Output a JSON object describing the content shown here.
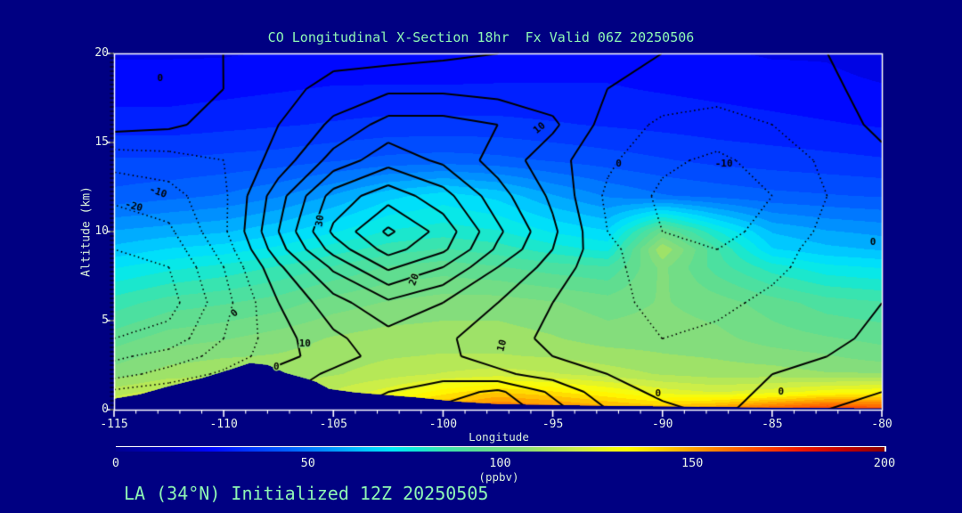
{
  "window": {
    "background": "#000082"
  },
  "title": "CO Longitudinal X-Section 18hr  Fx Valid 06Z 20250506",
  "footer": "LA (34°N) Initialized 12Z 20250505",
  "colors": {
    "background": "#000082",
    "title_text": "#8ef5b4",
    "tick_text": "#e9f4e9",
    "axis_box": "#ffffff",
    "contour_line": "#000000",
    "terrain_fill": "#000082"
  },
  "chart_data": {
    "type": "heatmap",
    "subtype": "filled-contour-cross-section",
    "title": "CO Longitudinal X-Section 18hr  Fx Valid 06Z 20250506",
    "xlabel": "Longitude",
    "ylabel": "Altitude (km)",
    "xlim": [
      -115,
      -80
    ],
    "ylim": [
      0,
      20
    ],
    "x_ticks": [
      -115,
      -110,
      -105,
      -100,
      -95,
      -90,
      -85,
      -80
    ],
    "x_minor_step": 1,
    "y_ticks": [
      0,
      5,
      10,
      15,
      20
    ],
    "y_minor_step": 0.25,
    "grid": "off",
    "colorbar": {
      "label": "(ppbv)",
      "min": 0,
      "max": 200,
      "ticks": [
        0,
        50,
        100,
        150,
        200
      ],
      "stops": [
        [
          0,
          "#000090"
        ],
        [
          15,
          "#0000c8"
        ],
        [
          25,
          "#0008ff"
        ],
        [
          35,
          "#0038ff"
        ],
        [
          45,
          "#0060ff"
        ],
        [
          55,
          "#0090ff"
        ],
        [
          65,
          "#00c8ff"
        ],
        [
          72,
          "#00e8f8"
        ],
        [
          78,
          "#10e8d8"
        ],
        [
          85,
          "#38e4b0"
        ],
        [
          95,
          "#60dd90"
        ],
        [
          105,
          "#84dd7c"
        ],
        [
          112,
          "#a8e460"
        ],
        [
          120,
          "#ccee48"
        ],
        [
          128,
          "#f0f818"
        ],
        [
          133,
          "#ffff00"
        ],
        [
          142,
          "#ffd200"
        ],
        [
          150,
          "#ffa400"
        ],
        [
          158,
          "#ff7800"
        ],
        [
          168,
          "#ff4600"
        ],
        [
          178,
          "#f01800"
        ],
        [
          190,
          "#c00000"
        ],
        [
          200,
          "#8b0000"
        ]
      ],
      "quantize_step": 5
    },
    "fill_field_ppbv": {
      "lons": [
        -115,
        -112.5,
        -110,
        -107.5,
        -105,
        -102.5,
        -100,
        -97.5,
        -95,
        -92.5,
        -90,
        -87.5,
        -85,
        -82.5,
        -80
      ],
      "alts": [
        0,
        1,
        2,
        3,
        4,
        6,
        8,
        9,
        10,
        12,
        14,
        16,
        18,
        20
      ],
      "values": [
        [
          125,
          132,
          128,
          118,
          128,
          142,
          152,
          162,
          158,
          152,
          148,
          155,
          165,
          172,
          168
        ],
        [
          115,
          120,
          118,
          112,
          118,
          125,
          135,
          142,
          138,
          132,
          125,
          122,
          125,
          130,
          132
        ],
        [
          105,
          110,
          112,
          110,
          112,
          115,
          118,
          120,
          118,
          115,
          112,
          110,
          110,
          108,
          108
        ],
        [
          100,
          105,
          107,
          108,
          110,
          112,
          113,
          113,
          112,
          110,
          108,
          107,
          105,
          103,
          100
        ],
        [
          95,
          100,
          102,
          105,
          108,
          110,
          110,
          110,
          108,
          105,
          105,
          104,
          100,
          98,
          96
        ],
        [
          85,
          90,
          92,
          95,
          100,
          103,
          105,
          105,
          103,
          100,
          103,
          100,
          95,
          90,
          88
        ],
        [
          72,
          76,
          79,
          83,
          88,
          93,
          95,
          93,
          90,
          88,
          104,
          90,
          80,
          74,
          72
        ],
        [
          64,
          68,
          70,
          74,
          80,
          85,
          88,
          85,
          80,
          76,
          112,
          88,
          68,
          64,
          62
        ],
        [
          58,
          60,
          62,
          66,
          72,
          78,
          80,
          78,
          72,
          68,
          98,
          78,
          62,
          58,
          56
        ],
        [
          44,
          46,
          48,
          52,
          58,
          66,
          70,
          66,
          58,
          52,
          48,
          46,
          44,
          43,
          42
        ],
        [
          38,
          38,
          39,
          40,
          42,
          44,
          45,
          44,
          42,
          40,
          38,
          36,
          35,
          34,
          33
        ],
        [
          30,
          30,
          31,
          32,
          33,
          34,
          34,
          34,
          33,
          32,
          31,
          30,
          29,
          28,
          27
        ],
        [
          25,
          25,
          26,
          27,
          28,
          28,
          28,
          28,
          28,
          28,
          27,
          26,
          25,
          24,
          23
        ],
        [
          22,
          22,
          22,
          23,
          23,
          24,
          24,
          25,
          25,
          25,
          24,
          23,
          22,
          22,
          20
        ]
      ]
    },
    "contour_overlay": {
      "levels": [
        -25,
        -20,
        -15,
        -10,
        -5,
        0,
        5,
        10,
        15,
        20,
        25,
        30,
        35
      ],
      "negative_style": "dotted",
      "positive_style": "solid",
      "lons": [
        -115,
        -112.5,
        -110,
        -107.5,
        -105,
        -102.5,
        -100,
        -97.5,
        -95,
        -92.5,
        -90,
        -87.5,
        -85,
        -82.5,
        -80
      ],
      "alts": [
        0,
        1,
        2,
        3,
        4,
        6,
        8,
        9,
        10,
        12,
        14,
        16,
        18,
        20
      ],
      "values": [
        [
          2,
          3,
          5,
          6,
          9,
          12,
          16,
          19,
          12,
          5,
          1,
          -1,
          2,
          5,
          7
        ],
        [
          -4,
          -2,
          1,
          4,
          8,
          10,
          13,
          16,
          9,
          2,
          -1,
          -2,
          1,
          3,
          5
        ],
        [
          -12,
          -8,
          -4,
          2,
          6,
          8,
          8,
          6,
          3,
          0,
          -2,
          -2,
          0,
          1,
          3
        ],
        [
          -16,
          -13,
          -8,
          -2,
          3,
          7,
          6,
          3,
          0,
          -3,
          -4,
          -3,
          -2,
          0,
          2
        ],
        [
          -20,
          -18,
          -10,
          -2,
          4,
          8,
          6,
          2,
          -1,
          -4,
          -5,
          -4,
          -3,
          -1,
          1
        ],
        [
          -25,
          -22,
          -12,
          0,
          8,
          14,
          10,
          5,
          0,
          -4,
          -6,
          -6,
          -4,
          -2,
          0
        ],
        [
          -22,
          -20,
          -10,
          4,
          16,
          26,
          20,
          10,
          3,
          -4,
          -7,
          -8,
          -6,
          -3,
          -1
        ],
        [
          -20,
          -18,
          -8,
          8,
          22,
          32,
          26,
          14,
          5,
          -4,
          -8,
          -10,
          -7,
          -3,
          -1
        ],
        [
          -18,
          -16,
          -6,
          10,
          26,
          36,
          28,
          16,
          6,
          -5,
          -10,
          -12,
          -8,
          -4,
          -1
        ],
        [
          -14,
          -12,
          -6,
          8,
          22,
          28,
          22,
          12,
          4,
          -6,
          -11,
          -13,
          -10,
          -5,
          -2
        ],
        [
          -8,
          -7,
          -5,
          2,
          12,
          18,
          14,
          8,
          2,
          -4,
          -9,
          -11,
          -8,
          -4,
          -1
        ],
        [
          2,
          1,
          -2,
          0,
          6,
          12,
          12,
          10,
          6,
          -2,
          -6,
          -7,
          -5,
          -2,
          1
        ],
        [
          3,
          2,
          0,
          -2,
          2,
          4,
          4,
          3,
          2,
          0,
          -2,
          -3,
          -2,
          -1,
          2
        ],
        [
          2,
          1,
          0,
          -1,
          -2,
          -2,
          -1,
          0,
          1,
          1,
          0,
          -1,
          -1,
          0,
          1
        ]
      ],
      "labels": [
        {
          "text": "0",
          "lon": -112.9,
          "alt": 18.6,
          "rot": 0
        },
        {
          "text": "-10",
          "lon": -113.0,
          "alt": 12.2,
          "rot": 20
        },
        {
          "text": "-20",
          "lon": -114.1,
          "alt": 11.4,
          "rot": 15
        },
        {
          "text": "30",
          "lon": -105.6,
          "alt": 10.6,
          "rot": -80
        },
        {
          "text": "20",
          "lon": -101.3,
          "alt": 7.3,
          "rot": -70
        },
        {
          "text": "10",
          "lon": -95.6,
          "alt": 15.8,
          "rot": -40
        },
        {
          "text": "0",
          "lon": -92.0,
          "alt": 13.8,
          "rot": 0
        },
        {
          "text": "-10",
          "lon": -87.2,
          "alt": 13.8,
          "rot": 0
        },
        {
          "text": "0",
          "lon": -109.5,
          "alt": 5.4,
          "rot": -40
        },
        {
          "text": "10",
          "lon": -106.3,
          "alt": 3.7,
          "rot": 0
        },
        {
          "text": "0",
          "lon": -107.6,
          "alt": 2.4,
          "rot": 0
        },
        {
          "text": "10",
          "lon": -97.3,
          "alt": 3.6,
          "rot": -75
        },
        {
          "text": "0",
          "lon": -90.2,
          "alt": 0.9,
          "rot": 0
        },
        {
          "text": "0",
          "lon": -84.6,
          "alt": 1.0,
          "rot": 0
        },
        {
          "text": "0",
          "lon": -80.4,
          "alt": 9.4,
          "rot": 0
        }
      ]
    },
    "terrain_profile": {
      "lons": [
        -115,
        -113.8,
        -112.5,
        -111,
        -109.8,
        -108.8,
        -108,
        -107.2,
        -106.3,
        -105.8,
        -105.2,
        -104,
        -102.5,
        -101,
        -99.5,
        -97.5,
        -95,
        -92.5,
        -90,
        -87.5,
        -85,
        -82.5,
        -80
      ],
      "heights": [
        0.6,
        0.85,
        1.3,
        1.75,
        2.2,
        2.6,
        2.5,
        2.05,
        1.75,
        1.55,
        1.15,
        0.95,
        0.8,
        0.65,
        0.45,
        0.3,
        0.25,
        0.2,
        0.17,
        0.14,
        0.1,
        0.08,
        0.07
      ]
    }
  }
}
